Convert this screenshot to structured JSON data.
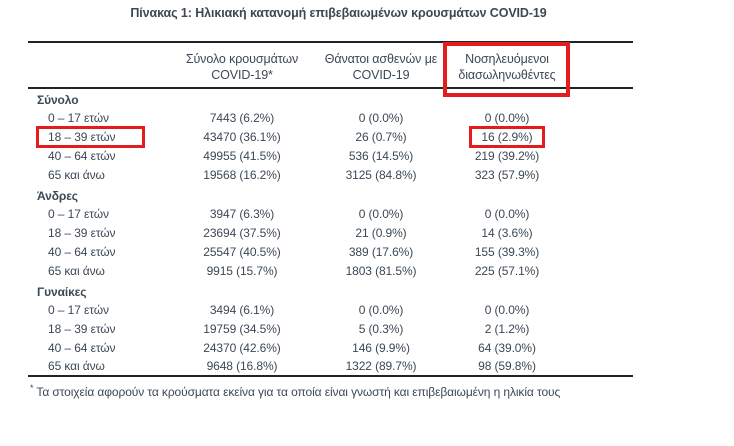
{
  "title": "Πίνακας 1: Ηλικιακή κατανομή επιβεβαιωμένων κρουσμάτων COVID-19",
  "table": {
    "columns": [
      {
        "line1": "Σύνολο κρουσμάτων",
        "line2": "COVID-19*"
      },
      {
        "line1": "Θάνατοι ασθενών με",
        "line2": "COVID-19"
      },
      {
        "line1": "Νοσηλευόμενοι",
        "line2": "διασωληνωθέντες",
        "highlighted": true
      }
    ],
    "groups": [
      {
        "name": "Σύνολο",
        "rows": [
          {
            "age": "0 – 17 ετών",
            "cases": "7443 (6.2%)",
            "deaths": "0 (0.0%)",
            "intubated": "0 (0.0%)"
          },
          {
            "age": "18 – 39 ετών",
            "cases": "43470 (36.1%)",
            "deaths": "26 (0.7%)",
            "intubated": "16 (2.9%)",
            "highlight_age": true,
            "highlight_intubated": true
          },
          {
            "age": "40 – 64 ετών",
            "cases": "49955 (41.5%)",
            "deaths": "536 (14.5%)",
            "intubated": "219 (39.2%)"
          },
          {
            "age": "65 και άνω",
            "cases": "19568 (16.2%)",
            "deaths": "3125 (84.8%)",
            "intubated": "323 (57.9%)"
          }
        ]
      },
      {
        "name": "Άνδρες",
        "rows": [
          {
            "age": "0 – 17 ετών",
            "cases": "3947 (6.3%)",
            "deaths": "0 (0.0%)",
            "intubated": "0 (0.0%)"
          },
          {
            "age": "18 – 39 ετών",
            "cases": "23694 (37.5%)",
            "deaths": "21 (0.9%)",
            "intubated": "14 (3.6%)"
          },
          {
            "age": "40 – 64 ετών",
            "cases": "25547 (40.5%)",
            "deaths": "389 (17.6%)",
            "intubated": "155 (39.3%)"
          },
          {
            "age": "65 και άνω",
            "cases": "9915 (15.7%)",
            "deaths": "1803 (81.5%)",
            "intubated": "225 (57.1%)"
          }
        ]
      },
      {
        "name": "Γυναίκες",
        "rows": [
          {
            "age": "0 – 17 ετών",
            "cases": "3494 (6.1%)",
            "deaths": "0 (0.0%)",
            "intubated": "0 (0.0%)"
          },
          {
            "age": "18 – 39 ετών",
            "cases": "19759 (34.5%)",
            "deaths": "5 (0.3%)",
            "intubated": "2 (1.2%)"
          },
          {
            "age": "40 – 64 ετών",
            "cases": "24370 (42.6%)",
            "deaths": "146 (9.9%)",
            "intubated": "64 (39.0%)"
          },
          {
            "age": "65 και άνω",
            "cases": "9648 (16.8%)",
            "deaths": "1322 (89.7%)",
            "intubated": "98 (59.8%)"
          }
        ]
      }
    ]
  },
  "footnote": {
    "marker": "*",
    "text": "Τα στοιχεία αφορούν τα κρούσματα εκείνα για τα οποία είναι γνωστή και επιβεβαιωμένη η ηλικία τους"
  },
  "annotations": {
    "highlight_color": "#e41c1e",
    "highlighted_items": [
      "intubated-column-header",
      "synolo-18-39-age-label",
      "synolo-18-39-intubated-value"
    ]
  },
  "colors": {
    "text": "#3b4855",
    "rule": "#232323",
    "background": "#ffffff",
    "highlight": "#e41c1e"
  }
}
